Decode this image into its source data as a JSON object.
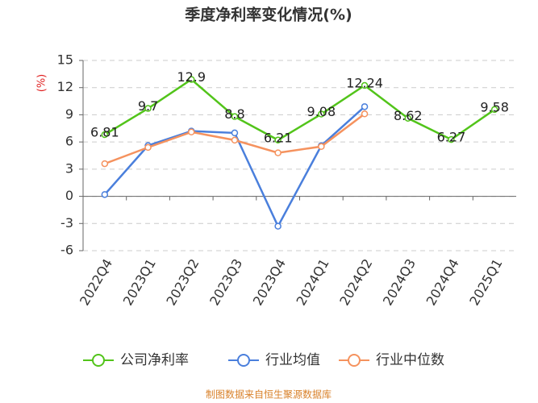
{
  "chart_data": {
    "type": "line",
    "title": "季度净利率变化情况(%)",
    "y_label": "(%)",
    "categories": [
      "2022Q4",
      "2023Q1",
      "2023Q2",
      "2023Q3",
      "2023Q4",
      "2024Q1",
      "2024Q2",
      "2024Q3",
      "2024Q4",
      "2025Q1"
    ],
    "series": [
      {
        "name": "公司净利率",
        "color": "#52c41a",
        "values": [
          6.81,
          9.7,
          12.9,
          8.8,
          6.21,
          9.08,
          12.24,
          8.62,
          6.27,
          9.58
        ],
        "data_labels": true
      },
      {
        "name": "行业均值",
        "color": "#4a7fdc",
        "values": [
          0.2,
          5.6,
          7.2,
          7.0,
          -3.3,
          5.6,
          9.9,
          null,
          null,
          null
        ]
      },
      {
        "name": "行业中位数",
        "color": "#f5925e",
        "values": [
          3.6,
          5.4,
          7.1,
          6.2,
          4.8,
          5.5,
          9.1,
          null,
          null,
          null
        ]
      }
    ],
    "ylim": [
      -6,
      15
    ],
    "yticks": [
      -6,
      -3,
      0,
      3,
      6,
      9,
      12,
      15
    ],
    "grid": true,
    "source": "制图数据来自恒生聚源数据库"
  }
}
